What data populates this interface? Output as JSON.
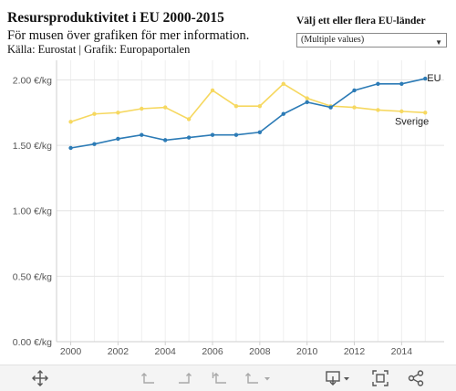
{
  "header": {
    "title": "Resursproduktivitet i EU 2000-2015",
    "subtitle": "För musen över grafiken för mer information.",
    "source": "Källa: Eurostat | Grafik: Europaportalen"
  },
  "filter": {
    "label": "Välj ett eller flera EU-länder",
    "value": "(Multiple values)"
  },
  "chart_data": {
    "type": "line",
    "x": [
      2000,
      2001,
      2002,
      2003,
      2004,
      2005,
      2006,
      2007,
      2008,
      2009,
      2010,
      2011,
      2012,
      2013,
      2014,
      2015
    ],
    "series": [
      {
        "name": "EU",
        "color": "#2c7bb6",
        "values": [
          1.48,
          1.51,
          1.55,
          1.58,
          1.54,
          1.56,
          1.58,
          1.58,
          1.6,
          1.74,
          1.83,
          1.79,
          1.92,
          1.97,
          1.97,
          2.01
        ]
      },
      {
        "name": "Sverige",
        "color": "#f6d860",
        "values": [
          1.68,
          1.74,
          1.75,
          1.78,
          1.79,
          1.7,
          1.92,
          1.8,
          1.8,
          1.97,
          1.86,
          1.8,
          1.79,
          1.77,
          1.76,
          1.75
        ]
      }
    ],
    "xticks": [
      "2000",
      "2002",
      "2004",
      "2006",
      "2008",
      "2010",
      "2012",
      "2014"
    ],
    "yticks": [
      "0.00 €/kg",
      "0.50 €/kg",
      "1.00 €/kg",
      "1.50 €/kg",
      "2.00 €/kg"
    ],
    "ylim": [
      0,
      2.15
    ],
    "xlim": [
      1999.4,
      2015.8
    ],
    "grid": true,
    "xlabel": "",
    "ylabel": ""
  },
  "toolbar": {
    "icons": [
      "move-icon",
      "undo-icon",
      "redo-icon",
      "revert-icon",
      "revert-menu-icon",
      "download-icon",
      "fullscreen-icon",
      "share-icon"
    ]
  }
}
